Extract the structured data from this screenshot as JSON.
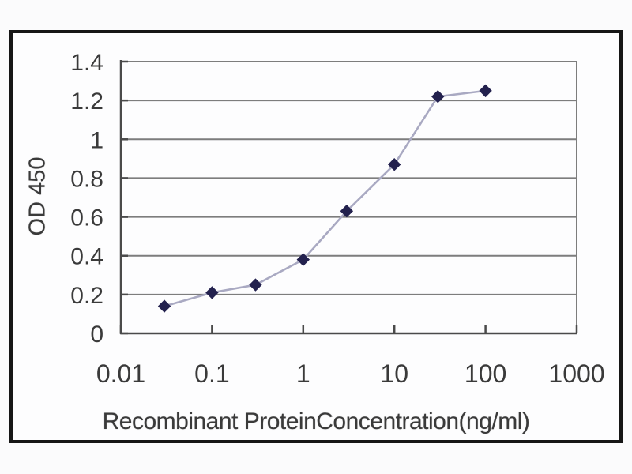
{
  "figure": {
    "kind": "ELISA standard curve line chart"
  },
  "chart_data": {
    "type": "line",
    "title": "",
    "xlabel": "Recombinant ProteinConcentration(ng/ml)",
    "ylabel": "OD 450",
    "x_scale": "log10",
    "xlim": [
      0.01,
      1000
    ],
    "ylim": [
      0,
      1.4
    ],
    "x_tick_labels": [
      "0.01",
      "0.1",
      "1",
      "10",
      "100",
      "1000"
    ],
    "x_tick_values": [
      0.01,
      0.1,
      1,
      10,
      100,
      1000
    ],
    "y_tick_labels": [
      "0",
      "0.2",
      "0.4",
      "0.6",
      "0.8",
      "1",
      "1.2",
      "1.4"
    ],
    "y_tick_values": [
      0,
      0.2,
      0.4,
      0.6,
      0.8,
      1,
      1.2,
      1.4
    ],
    "grid": "horizontal-only",
    "legend": "none",
    "series": [
      {
        "name": "OD 450",
        "marker": "diamond",
        "x": [
          0.03,
          0.1,
          0.3,
          1,
          3,
          10,
          30,
          100
        ],
        "values": [
          0.14,
          0.21,
          0.25,
          0.38,
          0.63,
          0.87,
          1.22,
          1.25
        ]
      }
    ],
    "colors": {
      "marker": "#23214e",
      "line": "#a9a9c2",
      "grid": "#7d7d7d",
      "axis": "#4a4a4a",
      "plot_right_edge": "#7d7d7d",
      "tick_text": "#3a3a3a",
      "frame_border": "#161616",
      "background": "#fdfdfe"
    }
  }
}
